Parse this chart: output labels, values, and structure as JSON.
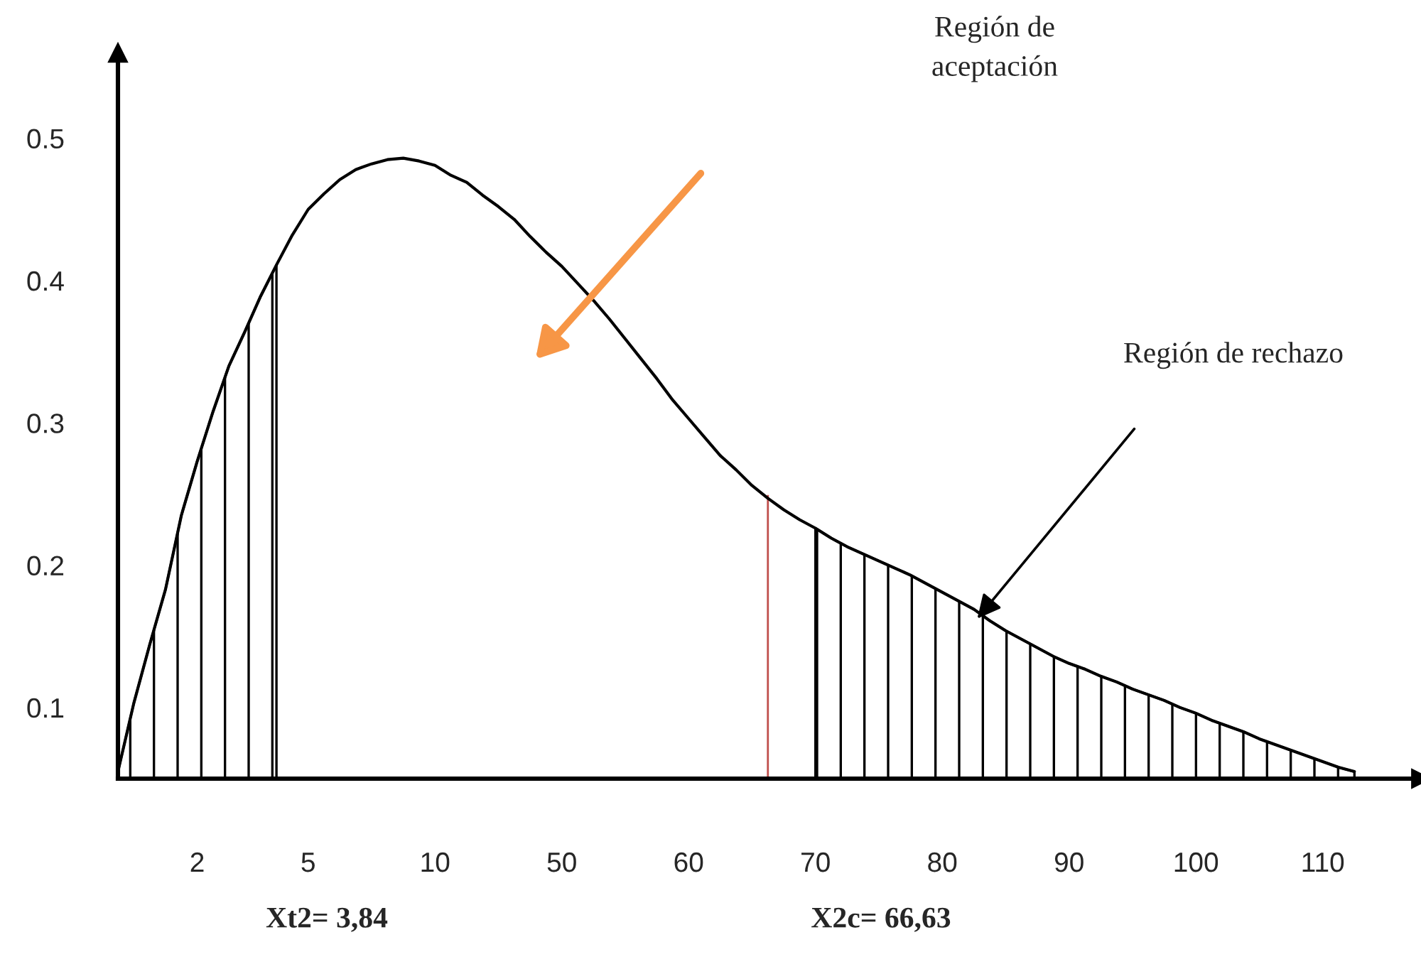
{
  "chart_data": {
    "type": "line",
    "categories": [
      null,
      null,
      null,
      null,
      null,
      "2",
      null,
      null,
      null,
      null,
      null,
      null,
      "5",
      null,
      null,
      null,
      null,
      null,
      null,
      null,
      "10",
      null,
      null,
      null,
      null,
      null,
      null,
      null,
      "50",
      null,
      null,
      null,
      null,
      null,
      null,
      null,
      "60",
      null,
      null,
      null,
      null,
      null,
      null,
      null,
      "70",
      null,
      null,
      null,
      null,
      null,
      null,
      null,
      "80",
      null,
      null,
      null,
      null,
      null,
      null,
      null,
      "90",
      null,
      null,
      null,
      null,
      null,
      null,
      null,
      "100",
      null,
      null,
      null,
      null,
      null,
      null,
      null,
      "110",
      null,
      null
    ],
    "series": [
      {
        "color": "#000000",
        "line_style": "solid",
        "values": [
          0.055,
          0.103,
          0.144,
          0.183,
          0.235,
          0.273,
          0.308,
          0.34,
          0.364,
          0.389,
          0.411,
          0.432,
          0.45,
          0.461,
          0.471,
          0.478,
          0.482,
          0.485,
          0.486,
          0.484,
          0.481,
          0.474,
          0.469,
          0.46,
          0.452,
          0.443,
          0.431,
          0.42,
          0.41,
          0.398,
          0.386,
          0.373,
          0.359,
          0.345,
          0.331,
          0.316,
          0.303,
          0.29,
          0.277,
          0.267,
          0.256,
          0.247,
          0.239,
          0.232,
          0.226,
          0.219,
          0.213,
          0.208,
          0.203,
          0.198,
          0.193,
          0.187,
          0.181,
          0.175,
          0.169,
          0.161,
          0.154,
          0.148,
          0.142,
          0.136,
          0.131,
          0.127,
          0.122,
          0.118,
          0.113,
          0.109,
          0.105,
          0.1,
          0.096,
          0.091,
          0.087,
          0.083,
          0.078,
          0.074,
          0.07,
          0.066,
          0.062,
          0.058,
          0.055
        ]
      },
      {
        "type": "area",
        "color": "#000000",
        "values": [
          0.055,
          0.103,
          0.144,
          0.183,
          0.235,
          0.273,
          0.308,
          0.34,
          0.364,
          0.389,
          0.411,
          null,
          null,
          null,
          null,
          null,
          null,
          null,
          null,
          null,
          null,
          null,
          null,
          null,
          null,
          null,
          null,
          null,
          null,
          null,
          null,
          null,
          null,
          null,
          null,
          null,
          null,
          null,
          null,
          null,
          null,
          null,
          null,
          null,
          null,
          null,
          null,
          null,
          null,
          null,
          null,
          null,
          null,
          null,
          null,
          null,
          null,
          null,
          null,
          null,
          null,
          null,
          null,
          null,
          null,
          null,
          null,
          null,
          null,
          null,
          null,
          null,
          null,
          null,
          null,
          null,
          null,
          null,
          null
        ]
      },
      {
        "type": "area",
        "color": "#000000",
        "values": [
          null,
          null,
          null,
          null,
          null,
          null,
          null,
          null,
          null,
          null,
          null,
          null,
          null,
          null,
          null,
          null,
          null,
          null,
          null,
          null,
          null,
          null,
          null,
          null,
          null,
          null,
          null,
          null,
          null,
          null,
          null,
          null,
          null,
          null,
          null,
          null,
          null,
          null,
          null,
          null,
          null,
          null,
          null,
          null,
          0.226,
          0.219,
          0.213,
          0.208,
          0.203,
          0.198,
          0.193,
          0.187,
          0.181,
          0.175,
          0.169,
          0.161,
          0.154,
          0.148,
          0.142,
          0.136,
          0.131,
          0.127,
          0.122,
          0.118,
          0.113,
          0.109,
          0.105,
          0.1,
          0.096,
          0.091,
          0.087,
          0.083,
          0.078,
          0.074,
          0.07,
          0.066,
          0.062,
          0.058,
          0.055
        ]
      },
      {
        "type": "bar",
        "color": "#c0504d",
        "values": [
          null,
          null,
          null,
          null,
          null,
          null,
          null,
          null,
          null,
          null,
          null,
          null,
          null,
          null,
          null,
          null,
          null,
          null,
          null,
          null,
          null,
          null,
          null,
          null,
          null,
          null,
          null,
          null,
          null,
          null,
          null,
          null,
          null,
          null,
          null,
          null,
          null,
          null,
          null,
          null,
          null,
          0.25,
          null,
          null,
          null,
          null,
          null,
          null,
          null,
          null,
          null,
          null,
          null,
          null,
          null,
          null,
          null,
          null,
          null,
          null,
          null,
          null,
          null,
          null,
          null,
          null,
          null,
          null,
          null,
          null,
          null,
          null,
          null,
          null,
          null,
          null,
          null,
          null,
          null
        ]
      }
    ],
    "ylim": [
      0.05,
      0.56
    ],
    "yticks": [
      0.1,
      0.2,
      0.3,
      0.4,
      0.5
    ],
    "grid": false,
    "legend": false,
    "annotations": [
      "Región de\naceptación",
      "Región de rechazo",
      "Xt2= 3,84",
      "X2c= 66,63"
    ]
  }
}
